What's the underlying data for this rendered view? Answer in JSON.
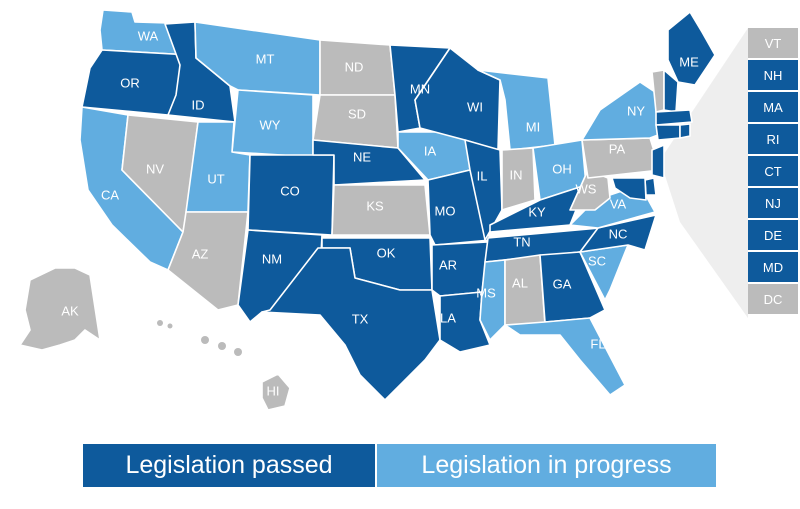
{
  "colors": {
    "passed": "#0e5a9c",
    "in_progress": "#61ade0",
    "none": "#bbbbbb",
    "callout_fill": "#eeeeee",
    "state_border": "#ffffff"
  },
  "states": [
    {
      "abbr": "WA",
      "status": "in_progress"
    },
    {
      "abbr": "OR",
      "status": "passed"
    },
    {
      "abbr": "CA",
      "status": "in_progress"
    },
    {
      "abbr": "ID",
      "status": "passed"
    },
    {
      "abbr": "NV",
      "status": "none"
    },
    {
      "abbr": "MT",
      "status": "in_progress"
    },
    {
      "abbr": "WY",
      "status": "in_progress"
    },
    {
      "abbr": "UT",
      "status": "in_progress"
    },
    {
      "abbr": "AZ",
      "status": "none"
    },
    {
      "abbr": "CO",
      "status": "passed"
    },
    {
      "abbr": "NM",
      "status": "passed"
    },
    {
      "abbr": "ND",
      "status": "none"
    },
    {
      "abbr": "SD",
      "status": "none"
    },
    {
      "abbr": "NE",
      "status": "passed"
    },
    {
      "abbr": "KS",
      "status": "none"
    },
    {
      "abbr": "OK",
      "status": "passed"
    },
    {
      "abbr": "TX",
      "status": "passed"
    },
    {
      "abbr": "MN",
      "status": "passed"
    },
    {
      "abbr": "IA",
      "status": "in_progress"
    },
    {
      "abbr": "MO",
      "status": "passed"
    },
    {
      "abbr": "AR",
      "status": "passed"
    },
    {
      "abbr": "LA",
      "status": "passed"
    },
    {
      "abbr": "WI",
      "status": "passed"
    },
    {
      "abbr": "IL",
      "status": "passed"
    },
    {
      "abbr": "MI",
      "status": "in_progress"
    },
    {
      "abbr": "IN",
      "status": "none"
    },
    {
      "abbr": "OH",
      "status": "in_progress"
    },
    {
      "abbr": "KY",
      "status": "passed"
    },
    {
      "abbr": "TN",
      "status": "passed"
    },
    {
      "abbr": "MS",
      "status": "in_progress"
    },
    {
      "abbr": "AL",
      "status": "none"
    },
    {
      "abbr": "GA",
      "status": "passed"
    },
    {
      "abbr": "FL",
      "status": "in_progress"
    },
    {
      "abbr": "SC",
      "status": "in_progress"
    },
    {
      "abbr": "NC",
      "status": "passed"
    },
    {
      "abbr": "VA",
      "status": "in_progress"
    },
    {
      "abbr": "WS",
      "status": "none"
    },
    {
      "abbr": "PA",
      "status": "none"
    },
    {
      "abbr": "NY",
      "status": "in_progress"
    },
    {
      "abbr": "ME",
      "status": "passed"
    },
    {
      "abbr": "AK",
      "status": "none"
    },
    {
      "abbr": "HI",
      "status": "none"
    }
  ],
  "small_states": [
    {
      "abbr": "VT",
      "status": "none"
    },
    {
      "abbr": "NH",
      "status": "passed"
    },
    {
      "abbr": "MA",
      "status": "passed"
    },
    {
      "abbr": "RI",
      "status": "passed"
    },
    {
      "abbr": "CT",
      "status": "passed"
    },
    {
      "abbr": "NJ",
      "status": "passed"
    },
    {
      "abbr": "DE",
      "status": "passed"
    },
    {
      "abbr": "MD",
      "status": "passed"
    },
    {
      "abbr": "DC",
      "status": "none"
    }
  ],
  "legend": {
    "passed_label": "Legislation passed",
    "in_progress_label": "Legislation in progress"
  }
}
